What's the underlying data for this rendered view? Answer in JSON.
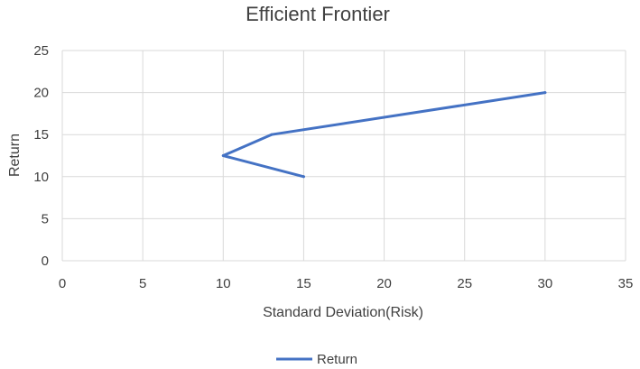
{
  "chart_data": {
    "type": "scatter",
    "title": "Efficient Frontier",
    "xlabel": "Standard Deviation(Risk)",
    "ylabel": "Return",
    "xlim": [
      0,
      35
    ],
    "ylim": [
      0,
      25
    ],
    "xticks": [
      0,
      5,
      10,
      15,
      20,
      25,
      30,
      35
    ],
    "yticks": [
      0,
      5,
      10,
      15,
      20,
      25
    ],
    "grid": true,
    "legend_position": "bottom",
    "series": [
      {
        "name": "Return",
        "color": "#4472C4",
        "points": [
          {
            "x": 15,
            "y": 10
          },
          {
            "x": 10,
            "y": 12.5
          },
          {
            "x": 13,
            "y": 15
          },
          {
            "x": 30,
            "y": 20
          }
        ]
      }
    ]
  }
}
